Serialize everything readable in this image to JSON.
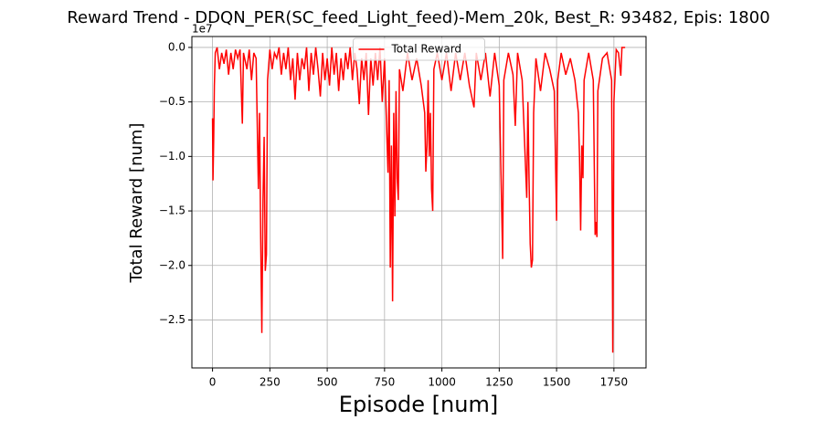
{
  "chart_data": {
    "type": "line",
    "title": "Reward Trend - DDQN_PER(SC_feed_Light_feed)-Mem_20k, Best_R: 93482, Epis: 1800",
    "x_label": "Episode [num]",
    "y_label": "Total Reward [num]",
    "y_offset_label": "1e7",
    "x": [
      0,
      2,
      5,
      8,
      12,
      20,
      30,
      40,
      50,
      60,
      70,
      80,
      90,
      100,
      110,
      120,
      130,
      135,
      150,
      160,
      170,
      180,
      190,
      200,
      205,
      210,
      215,
      220,
      225,
      230,
      235,
      240,
      250,
      260,
      270,
      280,
      290,
      300,
      310,
      320,
      330,
      340,
      350,
      360,
      370,
      380,
      390,
      400,
      410,
      420,
      430,
      440,
      450,
      460,
      470,
      480,
      490,
      500,
      510,
      520,
      530,
      540,
      550,
      560,
      570,
      580,
      590,
      600,
      610,
      620,
      630,
      640,
      650,
      660,
      670,
      680,
      690,
      700,
      710,
      720,
      730,
      740,
      750,
      760,
      765,
      770,
      775,
      780,
      785,
      790,
      795,
      800,
      805,
      810,
      815,
      830,
      850,
      870,
      890,
      910,
      925,
      930,
      935,
      940,
      945,
      950,
      955,
      960,
      965,
      980,
      1000,
      1020,
      1040,
      1060,
      1080,
      1100,
      1120,
      1140,
      1150,
      1170,
      1190,
      1210,
      1230,
      1250,
      1265,
      1270,
      1290,
      1310,
      1320,
      1330,
      1350,
      1370,
      1375,
      1380,
      1385,
      1390,
      1395,
      1400,
      1410,
      1430,
      1450,
      1470,
      1490,
      1500,
      1505,
      1520,
      1540,
      1560,
      1580,
      1595,
      1600,
      1605,
      1610,
      1615,
      1620,
      1640,
      1660,
      1668,
      1672,
      1676,
      1680,
      1700,
      1720,
      1740,
      1745,
      1750,
      1760,
      1770,
      1780,
      1785,
      1799
    ],
    "series": [
      {
        "name": "Total Reward",
        "color": "#ff0000",
        "values": [
          -0.65,
          -1.22,
          -0.85,
          -0.35,
          -0.05,
          0,
          -0.2,
          -0.05,
          -0.15,
          -0.02,
          -0.25,
          -0.05,
          -0.2,
          -0.02,
          -0.1,
          -0.02,
          -0.7,
          -0.05,
          -0.2,
          -0.02,
          -0.3,
          -0.05,
          -0.1,
          -1.3,
          -0.6,
          -1.75,
          -2.62,
          -1.4,
          -0.82,
          -2.05,
          -1.9,
          -0.3,
          -0.02,
          -0.2,
          -0.05,
          -0.1,
          0,
          -0.25,
          -0.05,
          -0.2,
          0,
          -0.3,
          -0.1,
          -0.48,
          -0.05,
          -0.3,
          -0.1,
          -0.2,
          0,
          -0.4,
          -0.05,
          -0.25,
          0,
          -0.2,
          -0.45,
          -0.05,
          -0.3,
          -0.1,
          -0.35,
          0,
          -0.25,
          -0.05,
          -0.4,
          -0.1,
          -0.3,
          -0.05,
          -0.2,
          0,
          -0.3,
          -0.05,
          -0.2,
          -0.52,
          -0.1,
          -0.3,
          -0.05,
          -0.62,
          -0.1,
          -0.35,
          -0.05,
          -0.3,
          0,
          -0.5,
          -0.1,
          -0.8,
          -1.15,
          -0.3,
          -2.02,
          -0.9,
          -2.33,
          -0.6,
          -1.55,
          -0.4,
          -1.2,
          -1.4,
          -0.2,
          -0.4,
          -0.05,
          -0.3,
          -0.1,
          -0.35,
          -0.6,
          -1.14,
          -0.9,
          -0.3,
          -1.0,
          -0.6,
          -1.3,
          -1.5,
          -0.2,
          -0.05,
          -0.3,
          -0.05,
          -0.4,
          -0.05,
          -0.3,
          -0.05,
          -0.35,
          -0.55,
          -0.05,
          -0.3,
          -0.05,
          -0.45,
          -0.05,
          -0.35,
          -1.94,
          -0.3,
          -0.05,
          -0.25,
          -0.72,
          -0.05,
          -0.3,
          -1.38,
          -0.5,
          -1.2,
          -1.8,
          -2.02,
          -1.95,
          -0.6,
          -0.1,
          -0.4,
          -0.05,
          -0.2,
          -0.4,
          -1.59,
          -0.3,
          -0.05,
          -0.25,
          -0.1,
          -0.3,
          -0.6,
          -1.0,
          -1.68,
          -0.9,
          -1.2,
          -0.3,
          -0.05,
          -0.3,
          -1.72,
          -1.6,
          -1.74,
          -0.4,
          -0.1,
          -0.05,
          -0.3,
          -2.8,
          -0.5,
          -0.02,
          -0.05,
          -0.26,
          0,
          0
        ]
      }
    ],
    "xlim": [
      -90,
      1890
    ],
    "xticks": [
      0,
      250,
      500,
      750,
      1000,
      1250,
      1500,
      1750
    ],
    "ylim": [
      -2.94,
      0.1
    ],
    "yticks": [
      {
        "value": 0,
        "label": "0.0"
      },
      {
        "value": -0.5,
        "label": "−0.5"
      },
      {
        "value": -1.0,
        "label": "−1.0"
      },
      {
        "value": -1.5,
        "label": "−1.5"
      },
      {
        "value": -2.0,
        "label": "−2.0"
      },
      {
        "value": -2.5,
        "label": "−2.5"
      }
    ],
    "grid": true,
    "legend_position": "upper center"
  }
}
